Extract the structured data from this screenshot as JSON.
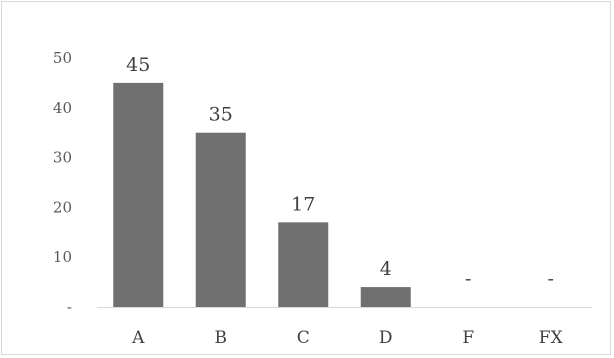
{
  "chart_data": {
    "type": "bar",
    "categories": [
      "A",
      "B",
      "C",
      "D",
      "F",
      "FX"
    ],
    "values": [
      45,
      35,
      17,
      4,
      0,
      0
    ],
    "data_labels": [
      "45",
      "35",
      "17",
      "4",
      "-",
      "-"
    ],
    "y_tick_labels": [
      "-",
      "10",
      "20",
      "30",
      "40",
      "50"
    ],
    "ylim": [
      0,
      50
    ],
    "grid": false,
    "bar_color": "#707070",
    "axis_color": "#d9d9d9"
  }
}
